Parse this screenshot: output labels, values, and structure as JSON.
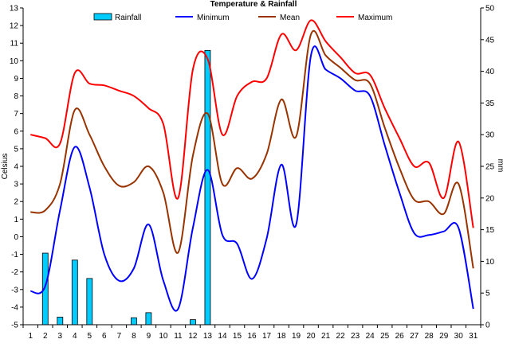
{
  "chart_data": {
    "type": "bar+line",
    "title": "Temperature & Rainfall",
    "y_left_label": "Celsius",
    "y_right_label": "mm",
    "y_left_range": [
      -5,
      13
    ],
    "y_right_range": [
      0,
      50
    ],
    "y_left_ticks": [
      -5,
      -4,
      -3,
      -2,
      -1,
      0,
      1,
      2,
      3,
      4,
      5,
      6,
      7,
      8,
      9,
      10,
      11,
      12,
      13
    ],
    "y_right_ticks": [
      0,
      5,
      10,
      15,
      20,
      25,
      30,
      35,
      40,
      45,
      50
    ],
    "x": [
      1,
      2,
      3,
      4,
      5,
      6,
      7,
      8,
      9,
      10,
      11,
      12,
      13,
      14,
      15,
      16,
      17,
      18,
      19,
      20,
      21,
      22,
      23,
      24,
      25,
      26,
      27,
      28,
      29,
      30,
      31
    ],
    "legend": [
      {
        "name": "Rainfall",
        "color": "#00CCFF",
        "type": "bar"
      },
      {
        "name": "Minimum",
        "color": "#0000FF",
        "type": "line"
      },
      {
        "name": "Mean",
        "color": "#993300",
        "type": "line"
      },
      {
        "name": "Maximum",
        "color": "#FF0000",
        "type": "line"
      }
    ],
    "series": [
      {
        "name": "Rainfall",
        "axis": "right",
        "color": "#00CCFF",
        "values": [
          0,
          11.3,
          1.2,
          10.2,
          7.3,
          0,
          0,
          1.1,
          1.9,
          0,
          0,
          0.8,
          43.3,
          0,
          0,
          0,
          0,
          0,
          0,
          0,
          0,
          0,
          0,
          0,
          0,
          0,
          0,
          0,
          0,
          0,
          0
        ]
      },
      {
        "name": "Minimum",
        "axis": "left",
        "color": "#0000FF",
        "values": [
          -3.1,
          -2.8,
          1.5,
          5.1,
          2.8,
          -1.0,
          -2.5,
          -1.8,
          0.7,
          -2.5,
          -4.1,
          0.5,
          3.8,
          0.1,
          -0.4,
          -2.4,
          -0.1,
          4.1,
          0.7,
          10.3,
          9.5,
          9.0,
          8.3,
          8.0,
          5.2,
          2.5,
          0.2,
          0.1,
          0.3,
          0.5,
          -4.1
        ]
      },
      {
        "name": "Mean",
        "axis": "left",
        "color": "#993300",
        "values": [
          1.4,
          1.5,
          3.0,
          7.2,
          5.8,
          4.0,
          2.9,
          3.1,
          4.0,
          2.5,
          -0.9,
          4.6,
          7.0,
          3.0,
          3.9,
          3.3,
          4.7,
          7.8,
          5.7,
          11.5,
          10.3,
          9.6,
          8.9,
          8.7,
          6.2,
          3.9,
          2.1,
          2.0,
          1.3,
          3.0,
          -1.8
        ]
      },
      {
        "name": "Maximum",
        "axis": "left",
        "color": "#FF0000",
        "values": [
          5.8,
          5.6,
          5.3,
          9.3,
          8.7,
          8.6,
          8.3,
          8.0,
          7.3,
          6.4,
          2.2,
          9.5,
          10.1,
          5.8,
          8.0,
          8.8,
          9.0,
          11.5,
          10.6,
          12.3,
          11.1,
          10.2,
          9.3,
          9.2,
          7.3,
          5.6,
          4.0,
          4.2,
          2.2,
          5.4,
          0.5
        ]
      }
    ]
  }
}
